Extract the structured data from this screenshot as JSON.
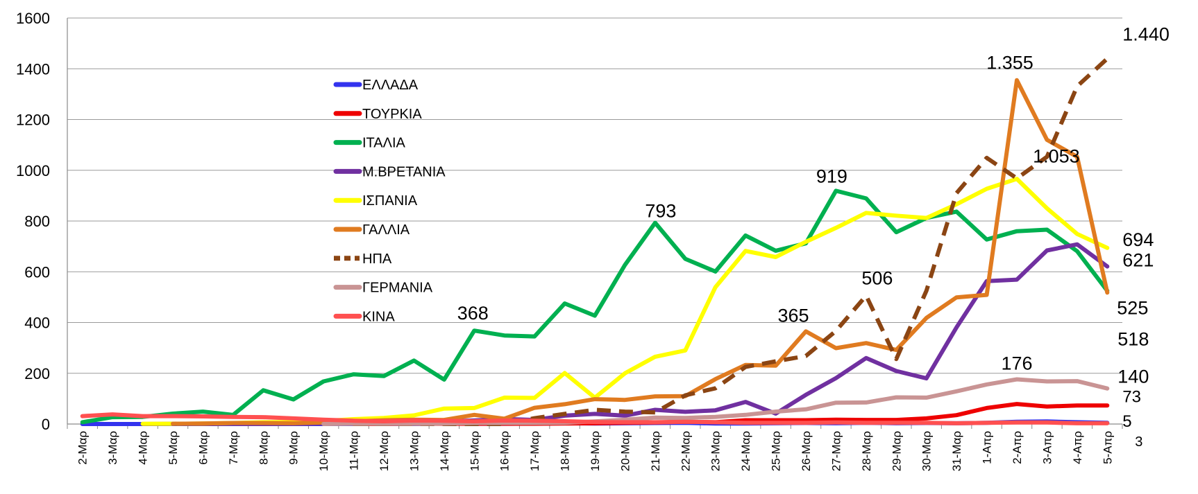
{
  "chart_data": {
    "type": "line",
    "title": "",
    "xlabel": "",
    "ylabel": "",
    "ylim": [
      0,
      1600
    ],
    "yticks": [
      "0",
      "200",
      "400",
      "600",
      "800",
      "1000",
      "1200",
      "1400",
      "1600"
    ],
    "grid": true,
    "legend_position": "upper-left-inside",
    "categories": [
      "2-Μαρ",
      "3-Μαρ",
      "4-Μαρ",
      "5-Μαρ",
      "6-Μαρ",
      "7-Μαρ",
      "8-Μαρ",
      "9-Μαρ",
      "10-Μαρ",
      "11-Μαρ",
      "12-Μαρ",
      "13-Μαρ",
      "14-Μαρ",
      "15-Μαρ",
      "16-Μαρ",
      "17-Μαρ",
      "18-Μαρ",
      "19-Μαρ",
      "20-Μαρ",
      "21-Μαρ",
      "22-Μαρ",
      "23-Μαρ",
      "24-Μαρ",
      "25-Μαρ",
      "26-Μαρ",
      "27-Μαρ",
      "28-Μαρ",
      "29-Μαρ",
      "30-Μαρ",
      "31-Μαρ",
      "1-Απρ",
      "2-Απρ",
      "3-Απρ",
      "4-Απρ",
      "5-Απρ"
    ],
    "series": [
      {
        "name": "ΕΛΛΑΔΑ",
        "color": "#3333ee",
        "dash": false,
        "values": [
          0,
          0,
          0,
          0,
          0,
          0,
          0,
          0,
          0,
          0,
          0,
          0,
          2,
          1,
          1,
          2,
          3,
          2,
          3,
          4,
          5,
          2,
          2,
          3,
          4,
          3,
          5,
          3,
          4,
          3,
          5,
          9,
          10,
          7,
          5
        ]
      },
      {
        "name": "ΤΟΥΡΚΙΑ",
        "color": "#ee0000",
        "dash": false,
        "values": [
          null,
          null,
          null,
          null,
          null,
          null,
          null,
          null,
          null,
          0,
          0,
          1,
          1,
          1,
          1,
          1,
          2,
          3,
          5,
          6,
          9,
          7,
          15,
          15,
          15,
          17,
          16,
          16,
          22,
          35,
          63,
          79,
          69,
          73,
          73
        ]
      },
      {
        "name": "ΙΤΑΛΙΑ",
        "color": "#00b050",
        "dash": false,
        "values": [
          7,
          27,
          28,
          41,
          49,
          36,
          133,
          97,
          168,
          196,
          189,
          250,
          175,
          368,
          349,
          345,
          475,
          427,
          627,
          793,
          651,
          601,
          743,
          683,
          712,
          919,
          889,
          756,
          812,
          837,
          727,
          760,
          766,
          681,
          525
        ]
      },
      {
        "name": "Μ.ΒΡΕΤΑΝΙΑ",
        "color": "#7030a0",
        "dash": false,
        "values": [
          null,
          null,
          0,
          1,
          0,
          1,
          0,
          1,
          2,
          2,
          1,
          8,
          10,
          14,
          20,
          16,
          33,
          40,
          33,
          56,
          48,
          54,
          87,
          41,
          115,
          181,
          260,
          209,
          180,
          381,
          563,
          569,
          684,
          708,
          621
        ]
      },
      {
        "name": "ΙΣΠΑΝΙΑ",
        "color": "#ffff00",
        "dash": false,
        "values": [
          null,
          null,
          1,
          1,
          2,
          4,
          7,
          8,
          12,
          19,
          24,
          34,
          61,
          63,
          104,
          103,
          201,
          104,
          200,
          265,
          290,
          539,
          682,
          658,
          718,
          773,
          832,
          821,
          812,
          866,
          927,
          966,
          850,
          749,
          694
        ]
      },
      {
        "name": "ΓΑΛΛΙΑ",
        "color": "#e07b20",
        "dash": false,
        "values": [
          null,
          null,
          null,
          1,
          2,
          4,
          4,
          3,
          6,
          10,
          15,
          17,
          16,
          36,
          21,
          64,
          78,
          98,
          95,
          109,
          110,
          177,
          233,
          230,
          365,
          299,
          319,
          292,
          418,
          499,
          509,
          1355,
          1120,
          1053,
          518
        ]
      },
      {
        "name": "ΗΠΑ",
        "color": "#8b4513",
        "dash": true,
        "values": [
          null,
          null,
          null,
          null,
          null,
          null,
          null,
          null,
          null,
          0,
          0,
          0,
          0,
          0,
          0,
          23,
          40,
          56,
          49,
          46,
          113,
          141,
          225,
          247,
          268,
          367,
          506,
          256,
          525,
          910,
          1049,
          968,
          1053,
          1331,
          1440
        ]
      },
      {
        "name": "ΓΕΡΜΑΝΙΑ",
        "color": "#c99494",
        "dash": false,
        "values": [
          null,
          null,
          null,
          null,
          null,
          null,
          null,
          null,
          0,
          1,
          1,
          1,
          2,
          4,
          4,
          4,
          5,
          10,
          17,
          25,
          24,
          28,
          36,
          49,
          58,
          84,
          85,
          105,
          104,
          129,
          156,
          176,
          168,
          169,
          140
        ]
      },
      {
        "name": "ΚΙΝΑ",
        "color": "#ff5050",
        "dash": false,
        "values": [
          31,
          38,
          31,
          31,
          30,
          28,
          27,
          22,
          17,
          13,
          11,
          14,
          13,
          11,
          14,
          13,
          11,
          8,
          7,
          7,
          9,
          7,
          5,
          5,
          5,
          6,
          5,
          5,
          5,
          3,
          5,
          6,
          6,
          3,
          3
        ]
      }
    ],
    "legend": [
      {
        "label": "ΕΛΛΑΔΑ"
      },
      {
        "label": "ΤΟΥΡΚΙΑ"
      },
      {
        "label": "ΙΤΑΛΙΑ"
      },
      {
        "label": "Μ.ΒΡΕΤΑΝΙΑ"
      },
      {
        "label": "ΙΣΠΑΝΙΑ"
      },
      {
        "label": "ΓΑΛΛΙΑ"
      },
      {
        "label": "ΗΠΑ"
      },
      {
        "label": "ΓΕΡΜΑΝΙΑ"
      },
      {
        "label": "ΚΙΝΑ"
      }
    ],
    "annotations": [
      {
        "text": "368",
        "category_index": 13,
        "value": 368,
        "size": "large"
      },
      {
        "text": "793",
        "category_index": 19,
        "value": 793,
        "size": "large"
      },
      {
        "text": "365",
        "category_index": 24,
        "value": 365,
        "size": "large"
      },
      {
        "text": "919",
        "category_index": 25,
        "value": 919,
        "size": "large"
      },
      {
        "text": "506",
        "category_index": 26,
        "value": 506,
        "size": "large"
      },
      {
        "text": "1.355",
        "category_index": 31,
        "value": 1355,
        "size": "large"
      },
      {
        "text": "1.053",
        "category_index": 33,
        "value": 1053,
        "size": "large"
      },
      {
        "text": "176",
        "category_index": 31,
        "value": 176,
        "size": "large"
      },
      {
        "text": "1.440",
        "category_index": 34,
        "value": 1440,
        "size": "large"
      },
      {
        "text": "694",
        "category_index": 34,
        "value": 694,
        "size": "large"
      },
      {
        "text": "621",
        "category_index": 34,
        "value": 621,
        "size": "large"
      },
      {
        "text": "525",
        "category_index": 34,
        "value": 525,
        "size": "large"
      },
      {
        "text": "518",
        "category_index": 34,
        "value": 518,
        "size": "large"
      },
      {
        "text": "140",
        "category_index": 34,
        "value": 140,
        "size": "large"
      },
      {
        "text": "73",
        "category_index": 34,
        "value": 73,
        "size": "medium"
      },
      {
        "text": "5",
        "category_index": 34,
        "value": 5,
        "size": "medium"
      },
      {
        "text": "3",
        "category_index": 34,
        "value": 3,
        "size": "small"
      }
    ]
  }
}
